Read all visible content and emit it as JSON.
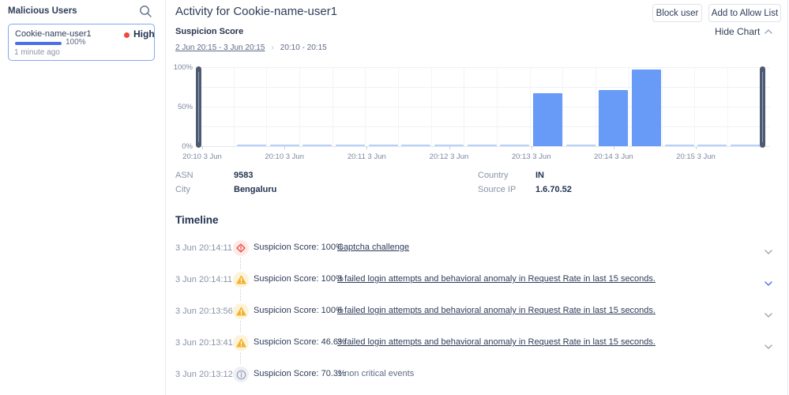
{
  "sidebar": {
    "title": "Malicious Users",
    "search_icon": "magnifier-icon",
    "card": {
      "user": "Cookie-name-user1",
      "severity": "High",
      "severity_color": "#f0483c",
      "score_percent": "100%",
      "progress_value": 100,
      "progress_color": "#4a6fe8",
      "last_seen": "1 minute ago"
    }
  },
  "header": {
    "title": "Activity for Cookie-name-user1",
    "block_button": "Block user",
    "allow_button": "Add to Allow List"
  },
  "chart_section": {
    "label": "Suspicion Score",
    "hide_chart_label": "Hide Chart",
    "hide_chart_icon": "chevron-up-icon",
    "date_range": "2 Jun 20:15 - 3 Jun 20:15",
    "range_separator": "›",
    "time_range": "20:10 - 20:15"
  },
  "chart_data": {
    "type": "bar",
    "title": "Suspicion Score",
    "ylabel": "",
    "ylim": [
      0,
      100
    ],
    "grid": true,
    "y_tick_labels": [
      "100%",
      "50%",
      "0%"
    ],
    "x_tick_labels": [
      "20:10 3 Jun",
      "20:10 3 Jun",
      "20:11 3 Jun",
      "20:12 3 Jun",
      "20:13 3 Jun",
      "20:14 3 Jun",
      "20:15 3 Jun"
    ],
    "values": [
      1,
      1,
      1,
      1,
      1,
      1,
      1,
      1,
      1,
      67,
      1,
      71,
      97,
      1,
      1,
      1
    ],
    "bar_color": "#689af7",
    "low_bar_color": "#b9d0fa",
    "brush_handle_color": "#4e5a73",
    "has_brush_handles": true
  },
  "details": {
    "rows": [
      {
        "label": "ASN",
        "value": "9583",
        "col": 0,
        "line": 0
      },
      {
        "label": "Country",
        "value": "IN",
        "col": 1,
        "line": 0
      },
      {
        "label": "City",
        "value": "Bengaluru",
        "col": 0,
        "line": 1
      },
      {
        "label": "Source IP",
        "value": "1.6.70.52",
        "col": 1,
        "line": 1
      }
    ]
  },
  "timeline": {
    "title": "Timeline",
    "rows": [
      {
        "time": "3 Jun 20:14:11",
        "icon": "critical-diamond-icon",
        "icon_color": "#ee443a",
        "icon_bg": "#fdebe9",
        "score": "Suspicion Score: 100%",
        "event": "Captcha challenge",
        "event_is_link": true,
        "expandable": true,
        "chevron_color": "#9aa3b8"
      },
      {
        "time": "3 Jun 20:14:11",
        "icon": "warning-triangle-icon",
        "icon_color": "#f3b32a",
        "icon_bg": "#fdf3da",
        "score": "Suspicion Score: 100%",
        "event": "3 failed login attempts and behavioral anomaly in Request Rate in last 15 seconds.",
        "event_is_link": true,
        "expandable": true,
        "chevron_color": "#5068f0"
      },
      {
        "time": "3 Jun 20:13:56",
        "icon": "warning-triangle-icon",
        "icon_color": "#f3b32a",
        "icon_bg": "#fdf3da",
        "score": "Suspicion Score: 100%",
        "event": "6 failed login attempts and behavioral anomaly in Request Rate in last 15 seconds.",
        "event_is_link": true,
        "expandable": true,
        "chevron_color": "#9aa3b8"
      },
      {
        "time": "3 Jun 20:13:41",
        "icon": "warning-triangle-icon",
        "icon_color": "#f3b32a",
        "icon_bg": "#fdf3da",
        "score": "Suspicion Score: 46.6%",
        "event": "3 failed login attempts and behavioral anomaly in Request Rate in last 15 seconds.",
        "event_is_link": true,
        "expandable": true,
        "chevron_color": "#9aa3b8"
      },
      {
        "time": "3 Jun 20:13:12",
        "icon": "info-circle-icon",
        "icon_color": "#97a1b6",
        "icon_bg": "#eef0f5",
        "score": "Suspicion Score: 70.3%",
        "event": "1 non critical events",
        "event_is_link": false,
        "expandable": false,
        "chevron_color": ""
      }
    ]
  },
  "colors": {
    "text_primary": "#2e3c58",
    "text_muted": "#8a93a8",
    "accent_blue": "#4a6fe8",
    "bar_blue": "#689af7",
    "divider": "#e6e9ef"
  }
}
